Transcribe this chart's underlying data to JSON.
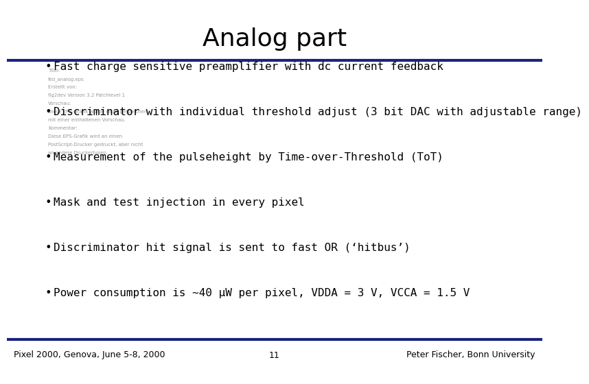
{
  "title": "Analog part",
  "title_fontsize": 26,
  "title_font": "sans-serif",
  "title_color": "#000000",
  "header_line_color": "#1a237e",
  "footer_line_color": "#1a237e",
  "background_color": "#ffffff",
  "small_text_color": "#999999",
  "small_text_lines": [
    "Titel:",
    "fed_analog.eps",
    "Erstellt von:",
    "fig2dev Version 3.2 Patchlevel 1",
    "Vorschau:",
    "Diese EPS-Grafik wurde nicht gespeichert",
    "mit einer enthaltenen Vorschau.",
    "Kommentar:",
    "Diese EPS-Grafik wird an einen",
    "PostScript-Drucker gedruckt, aber nicht",
    "an andere Druckertypen."
  ],
  "bullet_items": [
    "Fast charge sensitive preamplifier with dc current feedback",
    "Discriminator with individual threshold adjust (3 bit DAC with adjustable range)",
    "Measurement of the pulseheight by Time-over-Threshold (ToT)",
    "Mask and test injection in every pixel",
    "Discriminator hit signal is sent to fast OR (‘hitbus’)",
    "Power consumption is ~40 μW per pixel, VDDA = 3 V, VCCA = 1.5 V"
  ],
  "bullet_fontsize": 11.5,
  "bullet_font": "monospace",
  "bullet_color": "#000000",
  "footer_left": "Pixel 2000, Genova, June 5-8, 2000",
  "footer_center": "11",
  "footer_right": "Peter Fischer, Bonn University",
  "footer_fontsize": 9,
  "footer_font": "sans-serif",
  "footer_color": "#000000"
}
